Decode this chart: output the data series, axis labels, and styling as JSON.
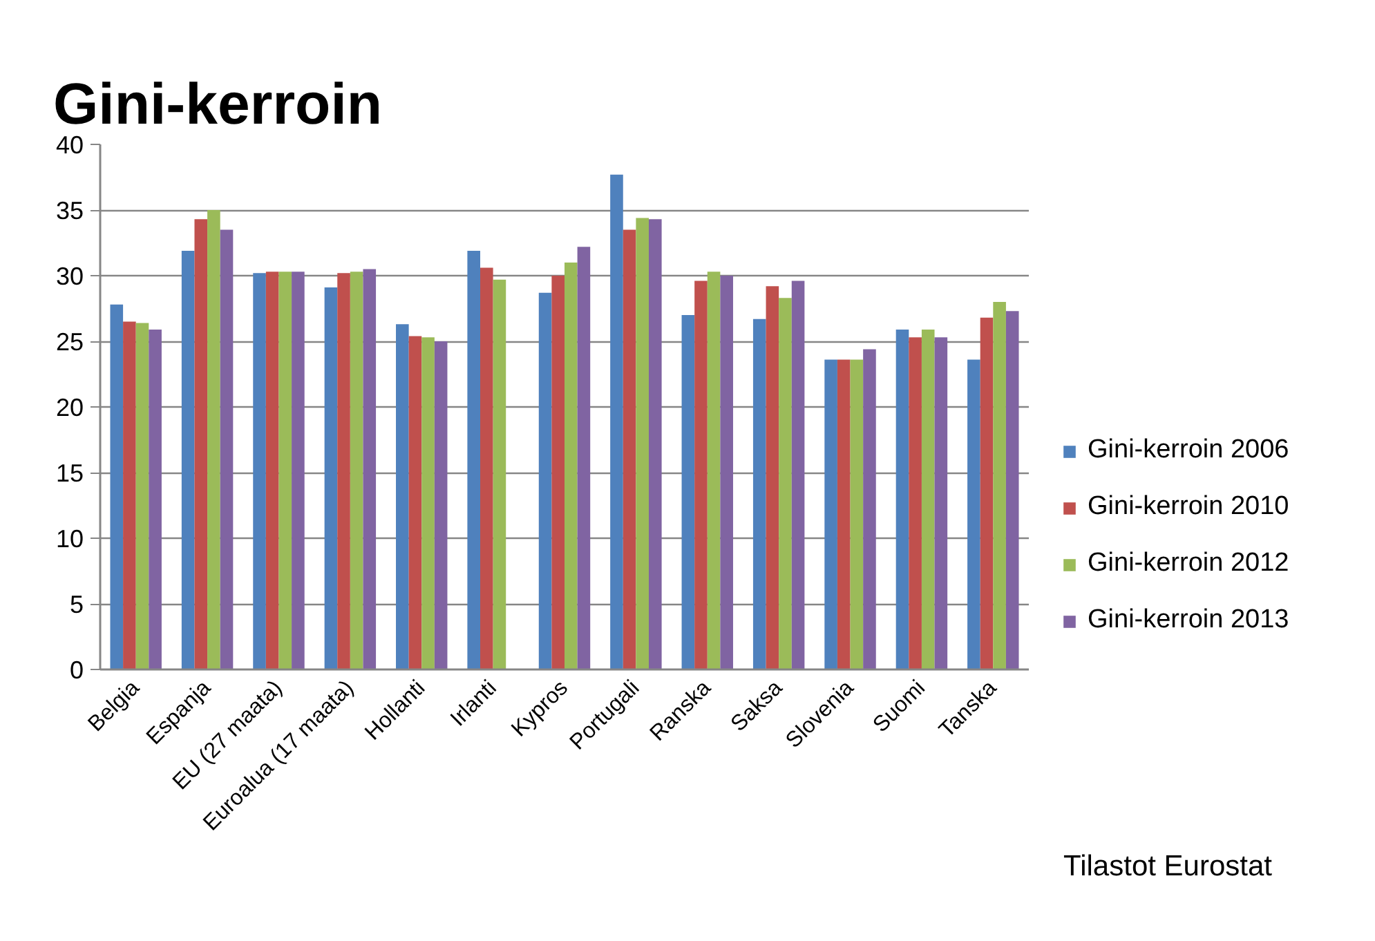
{
  "chart_data": {
    "type": "bar",
    "title": "Gini-kerroin",
    "categories": [
      "Belgia",
      "Espanja",
      "EU (27 maata)",
      "Euroalua (17 maata)",
      "Hollanti",
      "Irlanti",
      "Kypros",
      "Portugali",
      "Ranska",
      "Saksa",
      "Slovenia",
      "Suomi",
      "Tanska"
    ],
    "series": [
      {
        "name": "Gini-kerroin 2006",
        "color": "#4f81bd",
        "values": [
          27.8,
          31.9,
          30.2,
          29.1,
          26.3,
          31.9,
          28.7,
          37.7,
          27.0,
          26.7,
          23.6,
          25.9,
          23.6
        ]
      },
      {
        "name": "Gini-kerroin 2010",
        "color": "#c0504d",
        "values": [
          26.5,
          34.3,
          30.3,
          30.2,
          25.4,
          30.6,
          30.0,
          33.5,
          29.6,
          29.2,
          23.6,
          25.3,
          26.8
        ]
      },
      {
        "name": "Gini-kerroin 2012",
        "color": "#9bbb59",
        "values": [
          26.4,
          35.0,
          30.3,
          30.3,
          25.3,
          29.7,
          31.0,
          34.4,
          30.3,
          28.3,
          23.6,
          25.9,
          28.0
        ]
      },
      {
        "name": "Gini-kerroin 2013",
        "color": "#8064a2",
        "values": [
          25.9,
          33.5,
          30.3,
          30.5,
          25.0,
          null,
          32.2,
          34.3,
          30.0,
          29.6,
          24.4,
          25.3,
          27.3
        ]
      }
    ],
    "ylim": [
      0,
      40
    ],
    "yticks": [
      0,
      5,
      10,
      15,
      20,
      25,
      30,
      35,
      40
    ],
    "grid": "y",
    "legend": "right",
    "annotations": [
      "Tilastot Eurostat"
    ]
  }
}
